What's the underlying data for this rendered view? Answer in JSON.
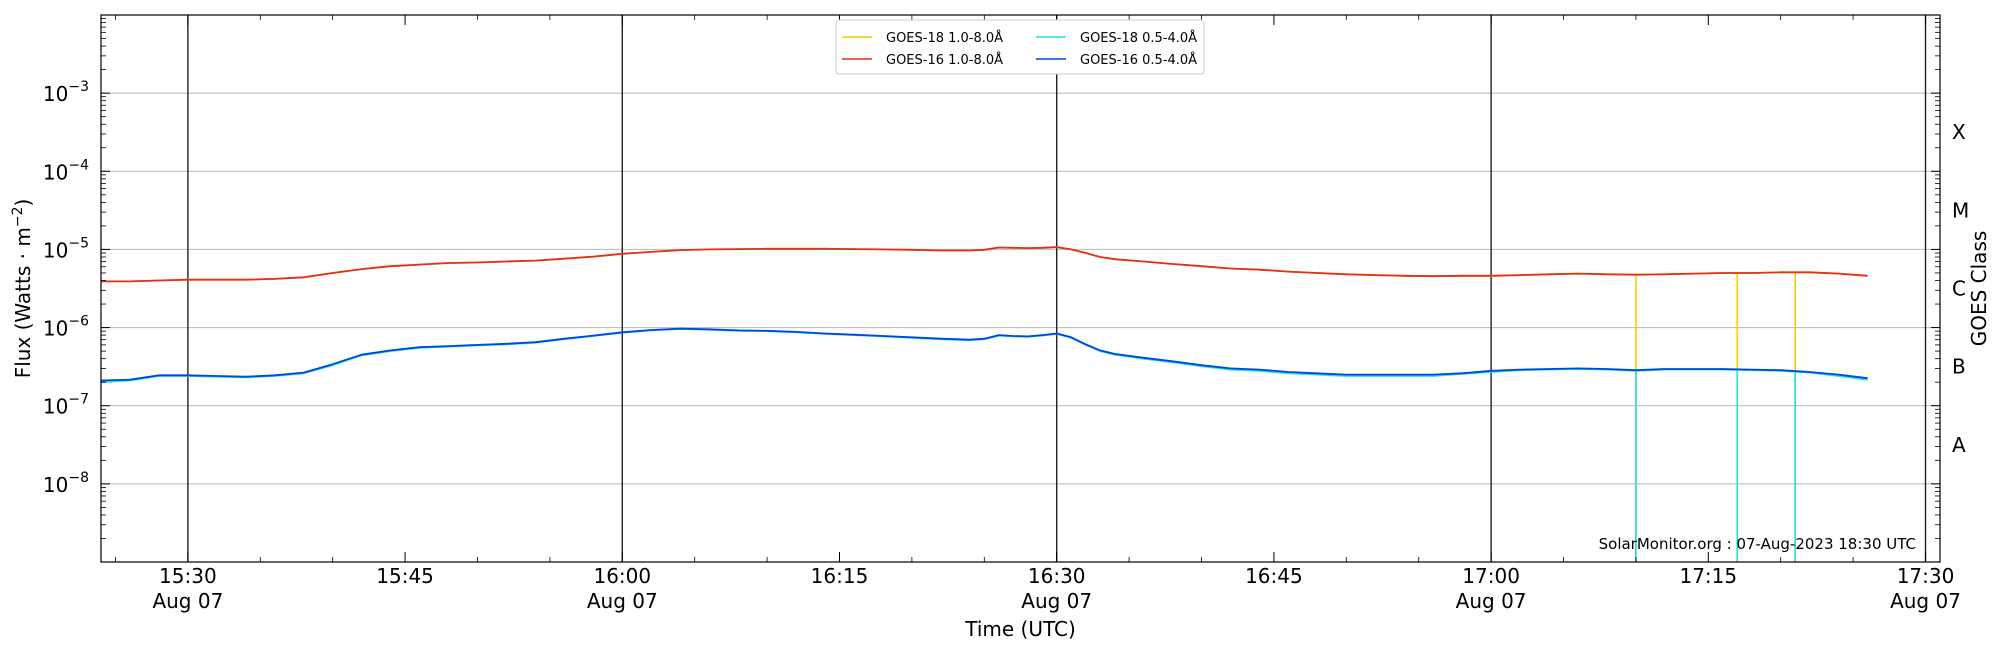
{
  "chart_data": {
    "type": "line",
    "xlabel": "Time (UTC)",
    "ylabel": "Flux (Watts · m",
    "ylabel_sup": "−2",
    "ylabel_close": ")",
    "y2label": "GOES Class",
    "xlim": [
      "15:24",
      "17:31"
    ],
    "ylim": [
      1e-09,
      0.01
    ],
    "yscale": "log",
    "x_ticks": [
      {
        "t": "15:30",
        "label": "15:30",
        "sub": "Aug 07",
        "major": true
      },
      {
        "t": "15:45",
        "label": "15:45",
        "sub": "",
        "major": false
      },
      {
        "t": "16:00",
        "label": "16:00",
        "sub": "Aug 07",
        "major": true
      },
      {
        "t": "16:15",
        "label": "16:15",
        "sub": "",
        "major": false
      },
      {
        "t": "16:30",
        "label": "16:30",
        "sub": "Aug 07",
        "major": true
      },
      {
        "t": "16:45",
        "label": "16:45",
        "sub": "",
        "major": false
      },
      {
        "t": "17:00",
        "label": "17:00",
        "sub": "Aug 07",
        "major": true
      },
      {
        "t": "17:15",
        "label": "17:15",
        "sub": "",
        "major": false
      },
      {
        "t": "17:30",
        "label": "17:30",
        "sub": "Aug 07",
        "major": true
      }
    ],
    "y_ticks": [
      {
        "exp": -8,
        "base": "10",
        "sup": "−8"
      },
      {
        "exp": -7,
        "base": "10",
        "sup": "−7"
      },
      {
        "exp": -6,
        "base": "10",
        "sup": "−6"
      },
      {
        "exp": -5,
        "base": "10",
        "sup": "−5"
      },
      {
        "exp": -4,
        "base": "10",
        "sup": "−4"
      },
      {
        "exp": -3,
        "base": "10",
        "sup": "−3"
      }
    ],
    "goes_classes": [
      {
        "label": "A",
        "exp": -7.5
      },
      {
        "label": "B",
        "exp": -6.5
      },
      {
        "label": "C",
        "exp": -5.5
      },
      {
        "label": "M",
        "exp": -4.5
      },
      {
        "label": "X",
        "exp": -3.5
      }
    ],
    "grid": true,
    "legend_position": "top-center",
    "watermark": "SolarMonitor.org : 07-Aug-2023 18:30 UTC",
    "series": [
      {
        "name": "GOES-18 1.0-8.0Å",
        "color": "#ffcc00",
        "x": [
          "15:24",
          "15:26",
          "15:28",
          "15:30",
          "15:32",
          "15:34",
          "15:36",
          "15:38",
          "15:40",
          "15:42",
          "15:44",
          "15:46",
          "15:48",
          "15:50",
          "15:52",
          "15:54",
          "15:56",
          "15:58",
          "16:00",
          "16:02",
          "16:04",
          "16:06",
          "16:08",
          "16:10",
          "16:12",
          "16:14",
          "16:16",
          "16:18",
          "16:20",
          "16:22",
          "16:24",
          "16:25",
          "16:26",
          "16:27",
          "16:28",
          "16:29",
          "16:30",
          "16:31",
          "16:32",
          "16:33",
          "16:34",
          "16:36",
          "16:38",
          "16:40",
          "16:42",
          "16:44",
          "16:46",
          "16:48",
          "16:50",
          "16:52",
          "16:54",
          "16:56",
          "16:58",
          "17:00",
          "17:02",
          "17:04",
          "17:06",
          "17:08",
          "17:10",
          "17:12",
          "17:14",
          "17:16",
          "17:18",
          "17:20",
          "17:22",
          "17:24",
          "17:26"
        ],
        "y": [
          3.9e-06,
          3.9e-06,
          4e-06,
          4.1e-06,
          4.1e-06,
          4.1e-06,
          4.2e-06,
          4.4e-06,
          5e-06,
          5.6e-06,
          6.1e-06,
          6.4e-06,
          6.7e-06,
          6.8e-06,
          7e-06,
          7.2e-06,
          7.6e-06,
          8.1e-06,
          8.8e-06,
          9.3e-06,
          9.8e-06,
          1e-05,
          1.01e-05,
          1.02e-05,
          1.02e-05,
          1.02e-05,
          1.01e-05,
          1e-05,
          9.9e-06,
          9.7e-06,
          9.7e-06,
          9.9e-06,
          1.06e-05,
          1.05e-05,
          1.04e-05,
          1.05e-05,
          1.07e-05,
          1e-05,
          9e-06,
          8e-06,
          7.5e-06,
          7e-06,
          6.5e-06,
          6.1e-06,
          5.7e-06,
          5.5e-06,
          5.2e-06,
          5e-06,
          4.8e-06,
          4.7e-06,
          4.6e-06,
          4.55e-06,
          4.6e-06,
          4.6e-06,
          4.7e-06,
          4.8e-06,
          4.9e-06,
          4.8e-06,
          4.75e-06,
          4.8e-06,
          4.9e-06,
          5e-06,
          5e-06,
          5.1e-06,
          5.1e-06,
          4.9e-06,
          4.6e-06
        ],
        "spikes": [
          "17:10",
          "17:17",
          "17:21"
        ]
      },
      {
        "name": "GOES-16 1.0-8.0Å",
        "color": "#e0301e",
        "x": [
          "15:24",
          "15:26",
          "15:28",
          "15:30",
          "15:32",
          "15:34",
          "15:36",
          "15:38",
          "15:40",
          "15:42",
          "15:44",
          "15:46",
          "15:48",
          "15:50",
          "15:52",
          "15:54",
          "15:56",
          "15:58",
          "16:00",
          "16:02",
          "16:04",
          "16:06",
          "16:08",
          "16:10",
          "16:12",
          "16:14",
          "16:16",
          "16:18",
          "16:20",
          "16:22",
          "16:24",
          "16:25",
          "16:26",
          "16:27",
          "16:28",
          "16:29",
          "16:30",
          "16:31",
          "16:32",
          "16:33",
          "16:34",
          "16:36",
          "16:38",
          "16:40",
          "16:42",
          "16:44",
          "16:46",
          "16:48",
          "16:50",
          "16:52",
          "16:54",
          "16:56",
          "16:58",
          "17:00",
          "17:02",
          "17:04",
          "17:06",
          "17:08",
          "17:10",
          "17:12",
          "17:14",
          "17:16",
          "17:18",
          "17:20",
          "17:22",
          "17:24",
          "17:26"
        ],
        "y": [
          3.9e-06,
          3.9e-06,
          4e-06,
          4.1e-06,
          4.1e-06,
          4.1e-06,
          4.2e-06,
          4.4e-06,
          5e-06,
          5.6e-06,
          6.1e-06,
          6.4e-06,
          6.7e-06,
          6.8e-06,
          7e-06,
          7.2e-06,
          7.6e-06,
          8.1e-06,
          8.8e-06,
          9.3e-06,
          9.8e-06,
          1e-05,
          1.01e-05,
          1.02e-05,
          1.02e-05,
          1.02e-05,
          1.01e-05,
          1e-05,
          9.9e-06,
          9.7e-06,
          9.7e-06,
          9.9e-06,
          1.06e-05,
          1.05e-05,
          1.04e-05,
          1.05e-05,
          1.07e-05,
          1e-05,
          9e-06,
          8e-06,
          7.5e-06,
          7e-06,
          6.5e-06,
          6.1e-06,
          5.7e-06,
          5.5e-06,
          5.2e-06,
          5e-06,
          4.8e-06,
          4.7e-06,
          4.6e-06,
          4.55e-06,
          4.6e-06,
          4.6e-06,
          4.7e-06,
          4.8e-06,
          4.9e-06,
          4.8e-06,
          4.75e-06,
          4.8e-06,
          4.9e-06,
          5e-06,
          5e-06,
          5.1e-06,
          5.1e-06,
          4.9e-06,
          4.6e-06
        ]
      },
      {
        "name": "GOES-18 0.5-4.0Å",
        "color": "#1fe0e0",
        "x": [
          "15:24",
          "15:26",
          "15:28",
          "15:30",
          "15:32",
          "15:34",
          "15:36",
          "15:38",
          "15:40",
          "15:42",
          "15:44",
          "15:46",
          "15:48",
          "15:50",
          "15:52",
          "15:54",
          "15:56",
          "15:58",
          "16:00",
          "16:02",
          "16:04",
          "16:06",
          "16:08",
          "16:10",
          "16:12",
          "16:14",
          "16:16",
          "16:18",
          "16:20",
          "16:22",
          "16:24",
          "16:25",
          "16:26",
          "16:27",
          "16:28",
          "16:29",
          "16:30",
          "16:31",
          "16:32",
          "16:33",
          "16:34",
          "16:36",
          "16:38",
          "16:40",
          "16:42",
          "16:44",
          "16:46",
          "16:48",
          "16:50",
          "16:52",
          "16:54",
          "16:56",
          "16:58",
          "17:00",
          "17:02",
          "17:04",
          "17:06",
          "17:08",
          "17:10",
          "17:12",
          "17:14",
          "17:16",
          "17:18",
          "17:20",
          "17:22",
          "17:24",
          "17:26"
        ],
        "y": [
          2e-07,
          2.1e-07,
          2.4e-07,
          2.4e-07,
          2.35e-07,
          2.3e-07,
          2.4e-07,
          2.6e-07,
          3.3e-07,
          4.4e-07,
          5e-07,
          5.5e-07,
          5.7e-07,
          5.9e-07,
          6.1e-07,
          6.4e-07,
          7.1e-07,
          7.8e-07,
          8.6e-07,
          9.2e-07,
          9.6e-07,
          9.4e-07,
          9.1e-07,
          9e-07,
          8.7e-07,
          8.3e-07,
          8e-07,
          7.7e-07,
          7.4e-07,
          7.1e-07,
          6.9e-07,
          7.1e-07,
          7.9e-07,
          7.7e-07,
          7.6e-07,
          7.9e-07,
          8.3e-07,
          7.4e-07,
          6e-07,
          5e-07,
          4.5e-07,
          4e-07,
          3.6e-07,
          3.2e-07,
          2.9e-07,
          2.8e-07,
          2.6e-07,
          2.5e-07,
          2.4e-07,
          2.4e-07,
          2.4e-07,
          2.4e-07,
          2.55e-07,
          2.7e-07,
          2.85e-07,
          2.9e-07,
          2.95e-07,
          2.9e-07,
          2.8e-07,
          2.9e-07,
          2.9e-07,
          2.9e-07,
          2.85e-07,
          2.8e-07,
          2.65e-07,
          2.4e-07,
          2.15e-07
        ],
        "spikes": [
          "17:10",
          "17:17",
          "17:21"
        ]
      },
      {
        "name": "GOES-16 0.5-4.0Å",
        "color": "#0046e0",
        "x": [
          "15:24",
          "15:26",
          "15:28",
          "15:30",
          "15:32",
          "15:34",
          "15:36",
          "15:38",
          "15:40",
          "15:42",
          "15:44",
          "15:46",
          "15:48",
          "15:50",
          "15:52",
          "15:54",
          "15:56",
          "15:58",
          "16:00",
          "16:02",
          "16:04",
          "16:06",
          "16:08",
          "16:10",
          "16:12",
          "16:14",
          "16:16",
          "16:18",
          "16:20",
          "16:22",
          "16:24",
          "16:25",
          "16:26",
          "16:27",
          "16:28",
          "16:29",
          "16:30",
          "16:31",
          "16:32",
          "16:33",
          "16:34",
          "16:36",
          "16:38",
          "16:40",
          "16:42",
          "16:44",
          "16:46",
          "16:48",
          "16:50",
          "16:52",
          "16:54",
          "16:56",
          "16:58",
          "17:00",
          "17:02",
          "17:04",
          "17:06",
          "17:08",
          "17:10",
          "17:12",
          "17:14",
          "17:16",
          "17:18",
          "17:20",
          "17:22",
          "17:24",
          "17:26"
        ],
        "y": [
          2.1e-07,
          2.15e-07,
          2.45e-07,
          2.45e-07,
          2.4e-07,
          2.35e-07,
          2.45e-07,
          2.65e-07,
          3.4e-07,
          4.5e-07,
          5.1e-07,
          5.6e-07,
          5.8e-07,
          6e-07,
          6.2e-07,
          6.5e-07,
          7.2e-07,
          7.9e-07,
          8.7e-07,
          9.3e-07,
          9.7e-07,
          9.5e-07,
          9.2e-07,
          9.1e-07,
          8.8e-07,
          8.4e-07,
          8.1e-07,
          7.8e-07,
          7.5e-07,
          7.2e-07,
          7e-07,
          7.2e-07,
          8e-07,
          7.8e-07,
          7.7e-07,
          8e-07,
          8.4e-07,
          7.5e-07,
          6.1e-07,
          5.1e-07,
          4.6e-07,
          4.1e-07,
          3.7e-07,
          3.3e-07,
          3e-07,
          2.9e-07,
          2.7e-07,
          2.6e-07,
          2.5e-07,
          2.5e-07,
          2.5e-07,
          2.5e-07,
          2.6e-07,
          2.8e-07,
          2.9e-07,
          2.95e-07,
          3e-07,
          2.95e-07,
          2.85e-07,
          2.95e-07,
          2.95e-07,
          2.95e-07,
          2.9e-07,
          2.85e-07,
          2.7e-07,
          2.5e-07,
          2.25e-07
        ]
      }
    ]
  }
}
